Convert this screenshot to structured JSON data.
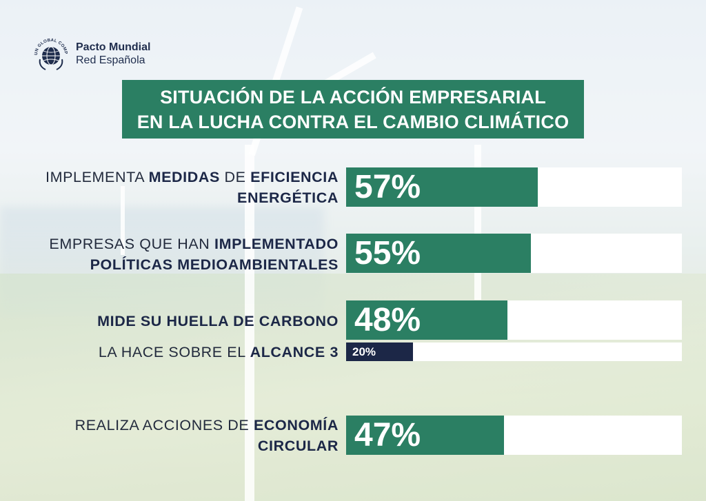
{
  "logo": {
    "emblem_text": "UN GLOBAL COMPACT",
    "title": "Pacto Mundial",
    "subtitle": "Red Española"
  },
  "title": {
    "line1": "SITUACIÓN DE LA ACCIÓN EMPRESARIAL",
    "line2": "EN LA LUCHA CONTRA EL CAMBIO CLIMÁTICO"
  },
  "colors": {
    "primary_green": "#2b7f63",
    "navy": "#1c2747",
    "bar_track": "#ffffff"
  },
  "chart_data": {
    "type": "bar",
    "orientation": "horizontal",
    "title": "SITUACIÓN DE LA ACCIÓN EMPRESARIAL EN LA LUCHA CONTRA EL CAMBIO CLIMÁTICO",
    "xlim": [
      0,
      100
    ],
    "unit": "%",
    "categories": [
      "IMPLEMENTA MEDIDAS DE EFICIENCIA ENERGÉTICA",
      "EMPRESAS QUE HAN IMPLEMENTADO POLÍTICAS MEDIOAMBIENTALES",
      "MIDE SU HUELLA DE CARBONO",
      "LA HACE SOBRE EL ALCANCE 3",
      "REALIZA ACCIONES DE ECONOMÍA CIRCULAR"
    ],
    "values": [
      57,
      55,
      48,
      20,
      47
    ],
    "value_labels": [
      "57%",
      "55%",
      "48%",
      "20%",
      "47%"
    ],
    "label_parts": [
      {
        "line1_plain": "IMPLEMENTA ",
        "line1_bold": "MEDIDAS",
        "line1_plain2": " DE ",
        "line1_bold2": "EFICIENCIA",
        "line2_bold": "ENERGÉTICA"
      },
      {
        "line1_plain": "EMPRESAS QUE HAN ",
        "line1_bold": "IMPLEMENTADO",
        "line2_bold": "POLÍTICAS MEDIOAMBIENTALES"
      },
      {
        "line1_bold": "MIDE SU HUELLA DE CARBONO"
      },
      {
        "line1_plain": "LA HACE SOBRE EL ",
        "line1_bold": "ALCANCE 3"
      },
      {
        "line1_plain": "REALIZA ACCIONES DE ",
        "line1_bold": "ECONOMÍA",
        "line2_bold": "CIRCULAR"
      }
    ],
    "bar_colors": [
      "#2b7f63",
      "#2b7f63",
      "#2b7f63",
      "#1c2747",
      "#2b7f63"
    ],
    "grid": false,
    "legend": "none"
  }
}
